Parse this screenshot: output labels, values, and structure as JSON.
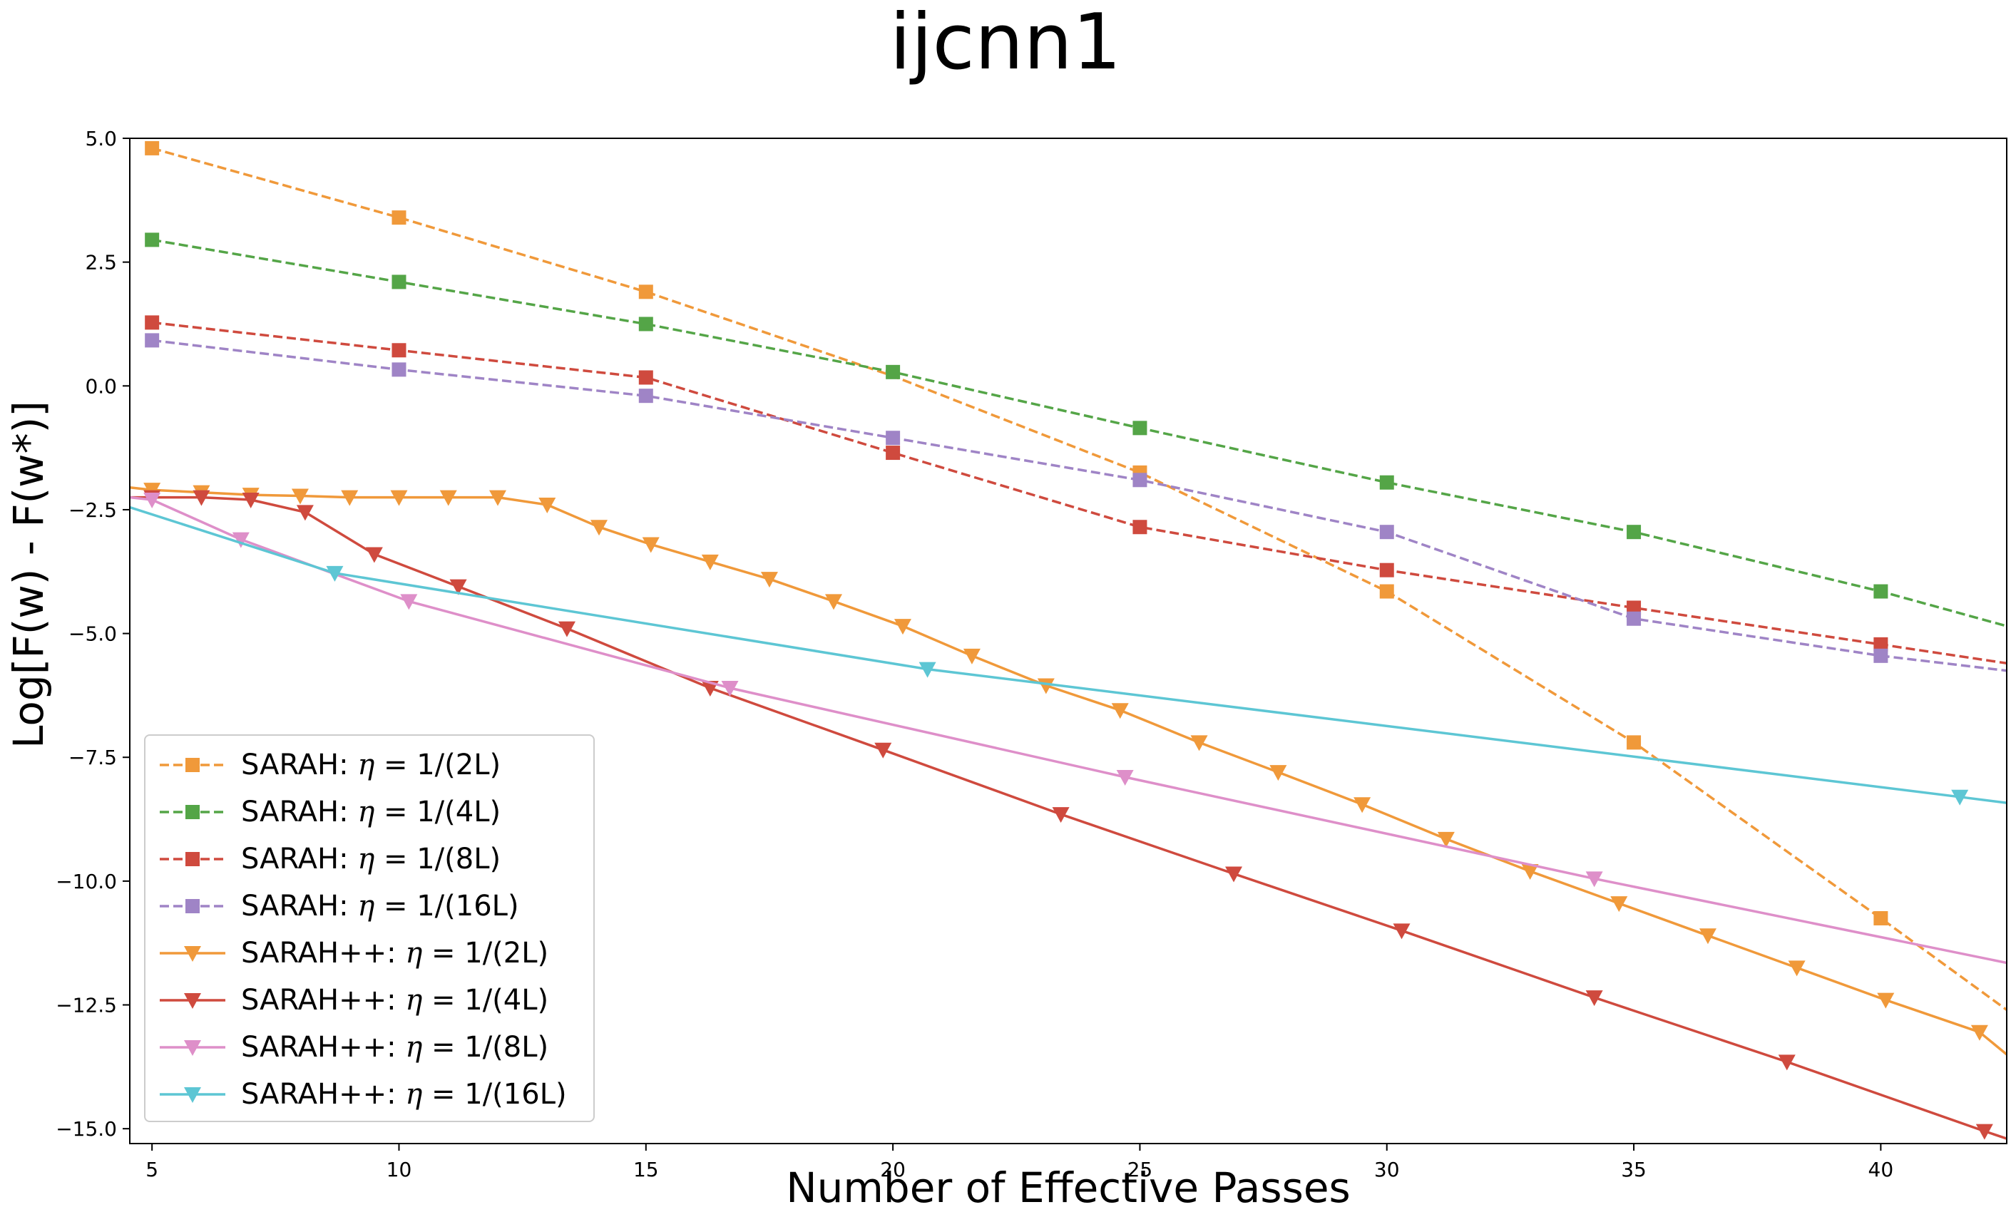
{
  "chart_data": {
    "type": "line",
    "title": "ijcnn1",
    "xlabel": "Number of Effective Passes",
    "ylabel": "Log[F(w) - F(w*)]",
    "xlim": [
      4.55,
      42.55
    ],
    "ylim": [
      -15.3,
      5.0
    ],
    "xticks": [
      5,
      10,
      15,
      20,
      25,
      30,
      35,
      40
    ],
    "xtick_labels": [
      "5",
      "10",
      "15",
      "20",
      "25",
      "30",
      "35",
      "40"
    ],
    "yticks": [
      5.0,
      2.5,
      0.0,
      -2.5,
      -5.0,
      -7.5,
      -10.0,
      -12.5,
      -15.0
    ],
    "ytick_labels": [
      "5.0",
      "2.5",
      "0.0",
      "−2.5",
      "−5.0",
      "−7.5",
      "−10.0",
      "−12.5",
      "−15.0"
    ],
    "legend_position": "lower-left",
    "series": [
      {
        "name": "SARAH: η = 1/(2L)",
        "prefix": "SARAH: ",
        "suffix": " = 1/(2L)",
        "color": "#f0993a",
        "style": "dashed",
        "marker": "square",
        "x": [
          5,
          10,
          15,
          20,
          25,
          30,
          35,
          40,
          42.55
        ],
        "y": [
          4.8,
          3.4,
          1.9,
          0.2,
          -1.75,
          -4.15,
          -7.2,
          -10.75,
          -12.6
        ],
        "marker_x": [
          5,
          10,
          15,
          25,
          30,
          35,
          40
        ],
        "marker_y": [
          4.8,
          3.4,
          1.9,
          -1.75,
          -4.15,
          -7.2,
          -10.75
        ]
      },
      {
        "name": "SARAH: η = 1/(4L)",
        "prefix": "SARAH: ",
        "suffix": " = 1/(4L)",
        "color": "#54a547",
        "style": "dashed",
        "marker": "square",
        "x": [
          5,
          10,
          15,
          20,
          25,
          30,
          35,
          40,
          42.55
        ],
        "y": [
          2.95,
          2.1,
          1.25,
          0.28,
          -0.85,
          -1.95,
          -2.95,
          -4.15,
          -4.85
        ],
        "marker_x": [
          5,
          10,
          15,
          20,
          25,
          30,
          35,
          40
        ],
        "marker_y": [
          2.95,
          2.1,
          1.25,
          0.28,
          -0.85,
          -1.95,
          -2.95,
          -4.15
        ]
      },
      {
        "name": "SARAH: η = 1/(8L)",
        "prefix": "SARAH: ",
        "suffix": " = 1/(8L)",
        "color": "#cf4a3e",
        "style": "dashed",
        "marker": "square",
        "x": [
          5,
          10,
          15,
          20,
          25,
          30,
          35,
          40,
          42.55
        ],
        "y": [
          1.28,
          0.72,
          0.17,
          -1.35,
          -2.85,
          -3.72,
          -4.48,
          -5.22,
          -5.6
        ],
        "marker_x": [
          5,
          10,
          15,
          20,
          25,
          30,
          35,
          40
        ],
        "marker_y": [
          1.28,
          0.72,
          0.17,
          -1.35,
          -2.85,
          -3.72,
          -4.48,
          -5.22
        ]
      },
      {
        "name": "SARAH: η = 1/(16L)",
        "prefix": "SARAH: ",
        "suffix": " = 1/(16L)",
        "color": "#9f84c6",
        "style": "dashed",
        "marker": "square",
        "x": [
          5,
          10,
          15,
          20,
          25,
          30,
          35,
          40,
          42.55
        ],
        "y": [
          0.92,
          0.33,
          -0.2,
          -1.05,
          -1.9,
          -2.95,
          -4.7,
          -5.45,
          -5.75
        ],
        "marker_x": [
          5,
          10,
          15,
          20,
          25,
          30,
          35,
          40
        ],
        "marker_y": [
          0.92,
          0.33,
          -0.2,
          -1.05,
          -1.9,
          -2.95,
          -4.7,
          -5.45
        ]
      },
      {
        "name": "SARAH++: η = 1/(2L)",
        "prefix": "SARAH++: ",
        "suffix": " = 1/(2L)",
        "color": "#f0993a",
        "style": "solid",
        "marker": "triangle-down",
        "x": [
          4.55,
          5,
          6,
          7,
          8,
          9,
          10,
          11,
          12,
          13,
          14.05,
          15.1,
          16.3,
          17.5,
          18.8,
          20.2,
          21.6,
          23.1,
          24.6,
          26.2,
          27.8,
          29.5,
          31.2,
          32.9,
          34.7,
          36.5,
          38.3,
          40.1,
          42,
          42.55
        ],
        "y": [
          -2.05,
          -2.1,
          -2.15,
          -2.2,
          -2.22,
          -2.25,
          -2.25,
          -2.25,
          -2.25,
          -2.4,
          -2.85,
          -3.2,
          -3.55,
          -3.9,
          -4.35,
          -4.85,
          -5.45,
          -6.05,
          -6.55,
          -7.2,
          -7.8,
          -8.45,
          -9.15,
          -9.8,
          -10.45,
          -11.1,
          -11.75,
          -12.4,
          -13.05,
          -13.5
        ],
        "marker_x": [
          5,
          6,
          7,
          8,
          9,
          10,
          11,
          12,
          13,
          14.05,
          15.1,
          16.3,
          17.5,
          18.8,
          20.2,
          21.6,
          23.1,
          24.6,
          26.2,
          27.8,
          29.5,
          31.2,
          32.9,
          34.7,
          36.5,
          38.3,
          40.1,
          42
        ],
        "marker_y": [
          -2.1,
          -2.15,
          -2.2,
          -2.22,
          -2.25,
          -2.25,
          -2.25,
          -2.25,
          -2.4,
          -2.85,
          -3.2,
          -3.55,
          -3.9,
          -4.35,
          -4.85,
          -5.45,
          -6.05,
          -6.55,
          -7.2,
          -7.8,
          -8.45,
          -9.15,
          -9.8,
          -10.45,
          -11.1,
          -11.75,
          -12.4,
          -13.05
        ]
      },
      {
        "name": "SARAH++: η = 1/(4L)",
        "prefix": "SARAH++: ",
        "suffix": " = 1/(4L)",
        "color": "#cf4a3e",
        "style": "solid",
        "marker": "triangle-down",
        "x": [
          4.55,
          5,
          6,
          7,
          8.1,
          9.5,
          11.2,
          13.4,
          16.3,
          19.8,
          23.4,
          26.9,
          30.3,
          34.2,
          38.1,
          42.1,
          42.55
        ],
        "y": [
          -2.25,
          -2.25,
          -2.25,
          -2.3,
          -2.55,
          -3.4,
          -4.05,
          -4.9,
          -6.1,
          -7.35,
          -8.65,
          -9.85,
          -11.0,
          -12.35,
          -13.65,
          -15.05,
          -15.2
        ],
        "marker_x": [
          5,
          6,
          7,
          8.1,
          9.5,
          11.2,
          13.4,
          16.3,
          19.8,
          23.4,
          26.9,
          30.3,
          34.2,
          38.1,
          42.1
        ],
        "marker_y": [
          -2.25,
          -2.25,
          -2.3,
          -2.55,
          -3.4,
          -4.05,
          -4.9,
          -6.1,
          -7.35,
          -8.65,
          -9.85,
          -11.0,
          -12.35,
          -13.65,
          -15.05
        ]
      },
      {
        "name": "SARAH++: η = 1/(8L)",
        "prefix": "SARAH++: ",
        "suffix": " = 1/(8L)",
        "color": "#de8fc9",
        "style": "solid",
        "marker": "triangle-down",
        "x": [
          4.55,
          5,
          6.8,
          10.2,
          16.7,
          24.7,
          34.2,
          42.55
        ],
        "y": [
          -2.25,
          -2.3,
          -3.1,
          -4.35,
          -6.1,
          -7.9,
          -9.95,
          -11.65
        ],
        "marker_x": [
          5,
          6.8,
          10.2,
          16.7,
          24.7,
          34.2
        ],
        "marker_y": [
          -2.3,
          -3.1,
          -4.35,
          -6.1,
          -7.9,
          -9.95
        ]
      },
      {
        "name": "SARAH++: η = 1/(16L)",
        "prefix": "SARAH++: ",
        "suffix": " = 1/(16L)",
        "color": "#5dc6d4",
        "style": "solid",
        "marker": "triangle-down",
        "x": [
          4.55,
          8.7,
          20.7,
          41.6,
          42.55
        ],
        "y": [
          -2.45,
          -3.78,
          -5.72,
          -8.3,
          -8.42
        ],
        "marker_x": [
          8.7,
          20.7,
          41.6
        ],
        "marker_y": [
          -3.78,
          -5.72,
          -8.3
        ]
      }
    ]
  }
}
